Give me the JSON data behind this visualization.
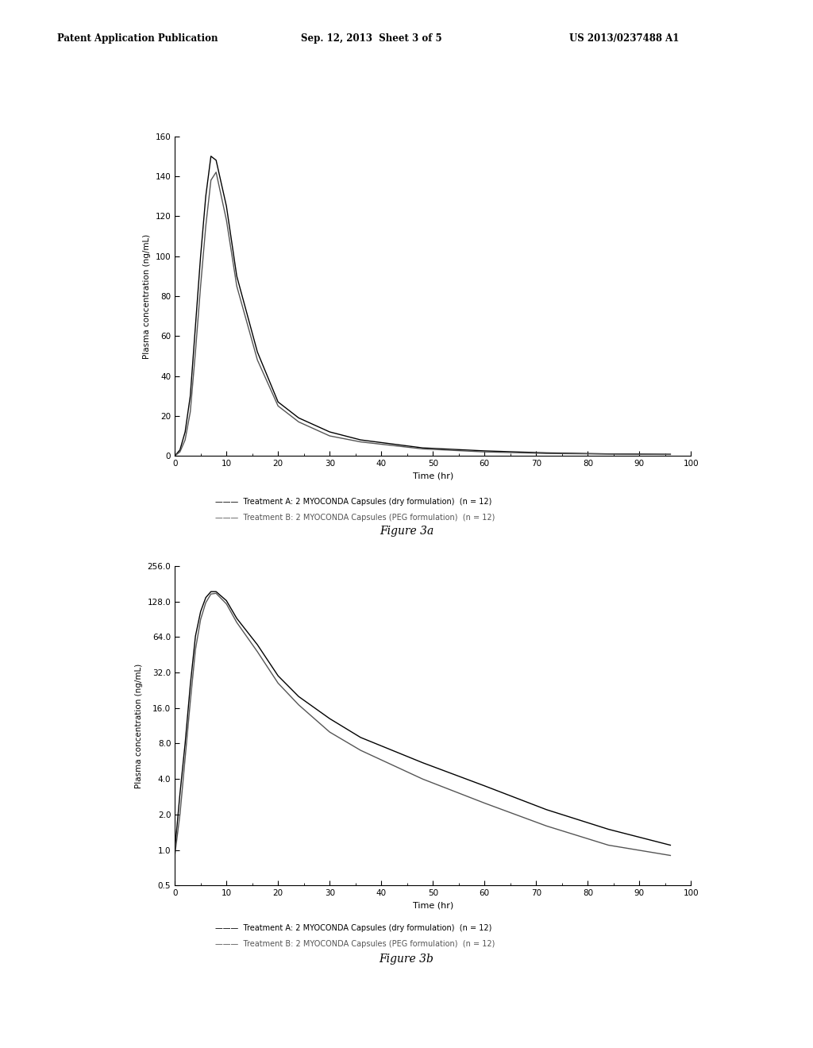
{
  "header_left": "Patent Application Publication",
  "header_center": "Sep. 12, 2013  Sheet 3 of 5",
  "header_right": "US 2013/0237488 A1",
  "fig3a_title": "Figure 3a",
  "fig3b_title": "Figure 3b",
  "xlabel": "Time (hr)",
  "ylabel": "Plasma concentration (ng/mL)",
  "xlim": [
    0,
    100
  ],
  "fig3a_ylim": [
    0,
    160
  ],
  "fig3a_yticks": [
    0,
    20,
    40,
    60,
    80,
    100,
    120,
    140,
    160
  ],
  "fig3b_yticks_log": [
    0.5,
    1.0,
    2.0,
    4.0,
    8.0,
    16.0,
    32.0,
    64.0,
    128.0,
    256.0
  ],
  "xticks": [
    0,
    10,
    20,
    30,
    40,
    50,
    60,
    70,
    80,
    90,
    100
  ],
  "legend_A": "Treatment A: 2 MYOCONDA Capsules (dry formulation)  (n = 12)",
  "legend_B": "Treatment B: 2 MYOCONDA Capsules (PEG formulation)  (n = 12)",
  "treatment_A_color": "#000000",
  "treatment_B_color": "#555555",
  "background_color": "#ffffff",
  "fig3a_A_x": [
    0,
    1,
    2,
    3,
    4,
    5,
    6,
    7,
    8,
    10,
    12,
    16,
    20,
    24,
    30,
    36,
    48,
    60,
    72,
    84,
    96
  ],
  "fig3a_A_y": [
    0,
    3,
    12,
    30,
    65,
    100,
    130,
    150,
    148,
    125,
    90,
    52,
    27,
    19,
    12,
    8,
    4,
    2.5,
    1.5,
    1.0,
    0.8
  ],
  "fig3a_B_x": [
    0,
    1,
    2,
    3,
    4,
    5,
    6,
    7,
    8,
    10,
    12,
    16,
    20,
    24,
    30,
    36,
    48,
    60,
    72,
    84,
    96
  ],
  "fig3a_B_y": [
    0,
    2,
    8,
    22,
    52,
    85,
    115,
    138,
    142,
    118,
    85,
    48,
    25,
    17,
    10,
    7,
    3.5,
    2.0,
    1.2,
    0.9,
    0.7
  ],
  "fig3b_A_x": [
    0,
    1,
    2,
    3,
    4,
    5,
    6,
    7,
    8,
    10,
    12,
    16,
    20,
    24,
    30,
    36,
    48,
    60,
    72,
    84,
    96
  ],
  "fig3b_A_y": [
    1.0,
    3.0,
    8.0,
    25,
    65,
    105,
    138,
    155,
    155,
    130,
    92,
    55,
    30,
    20,
    13,
    9,
    5.5,
    3.5,
    2.2,
    1.5,
    1.1
  ],
  "fig3b_B_x": [
    0,
    1,
    2,
    3,
    4,
    5,
    6,
    7,
    8,
    10,
    12,
    16,
    20,
    24,
    30,
    36,
    48,
    60,
    72,
    84,
    96
  ],
  "fig3b_B_y": [
    0.9,
    2.0,
    6.0,
    18,
    50,
    90,
    125,
    148,
    150,
    122,
    85,
    48,
    26,
    17,
    10,
    7,
    4.0,
    2.5,
    1.6,
    1.1,
    0.9
  ]
}
